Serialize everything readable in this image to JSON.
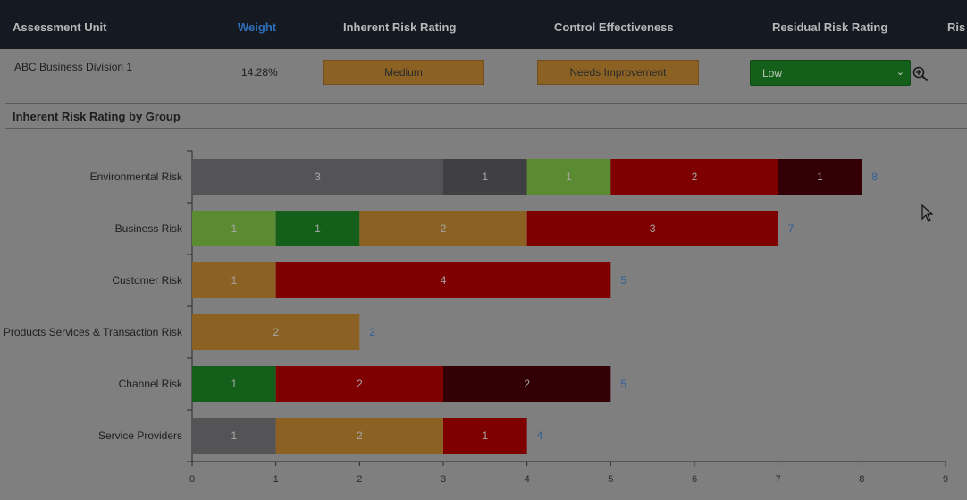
{
  "header": {
    "columns": [
      "Assessment Unit",
      "Weight",
      "Inherent Risk Rating",
      "Control Effectiveness",
      "Residual Risk Rating",
      "Ris"
    ]
  },
  "row": {
    "assessment_unit": "ABC Business Division 1",
    "weight": "14.28%",
    "inherent_risk_rating": "Medium",
    "control_effectiveness": "Needs Improvement",
    "residual_risk_rating": "Low"
  },
  "section": {
    "title": "Inherent Risk Rating by Group"
  },
  "colors": {
    "gray": "#545456",
    "darkgray": "#404042",
    "lightgreen": "#5a8a32",
    "green": "#14601a",
    "orange": "#8b6224",
    "red": "#7f0000",
    "darkred": "#330005",
    "total": "#2f5f98"
  },
  "chart_data": {
    "type": "bar",
    "orientation": "horizontal",
    "stacked": true,
    "categories": [
      "Environmental Risk",
      "Business Risk",
      "Customer Risk",
      "Products Services & Transaction Risk",
      "Channel Risk",
      "Service Providers"
    ],
    "segments": [
      [
        {
          "value": 3,
          "color": "gray"
        },
        {
          "value": 1,
          "color": "darkgray"
        },
        {
          "value": 1,
          "color": "lightgreen"
        },
        {
          "value": 2,
          "color": "red"
        },
        {
          "value": 1,
          "color": "darkred"
        }
      ],
      [
        {
          "value": 1,
          "color": "lightgreen"
        },
        {
          "value": 1,
          "color": "green"
        },
        {
          "value": 2,
          "color": "orange"
        },
        {
          "value": 3,
          "color": "red"
        }
      ],
      [
        {
          "value": 1,
          "color": "orange"
        },
        {
          "value": 4,
          "color": "red"
        }
      ],
      [
        {
          "value": 2,
          "color": "orange"
        }
      ],
      [
        {
          "value": 1,
          "color": "green"
        },
        {
          "value": 2,
          "color": "red"
        },
        {
          "value": 2,
          "color": "darkred"
        }
      ],
      [
        {
          "value": 1,
          "color": "gray"
        },
        {
          "value": 2,
          "color": "orange"
        },
        {
          "value": 1,
          "color": "red"
        }
      ]
    ],
    "totals": [
      8,
      7,
      5,
      2,
      5,
      4
    ],
    "xticks": [
      0,
      1,
      2,
      3,
      4,
      5,
      6,
      7,
      8,
      9
    ],
    "xlim": [
      0,
      9
    ]
  }
}
